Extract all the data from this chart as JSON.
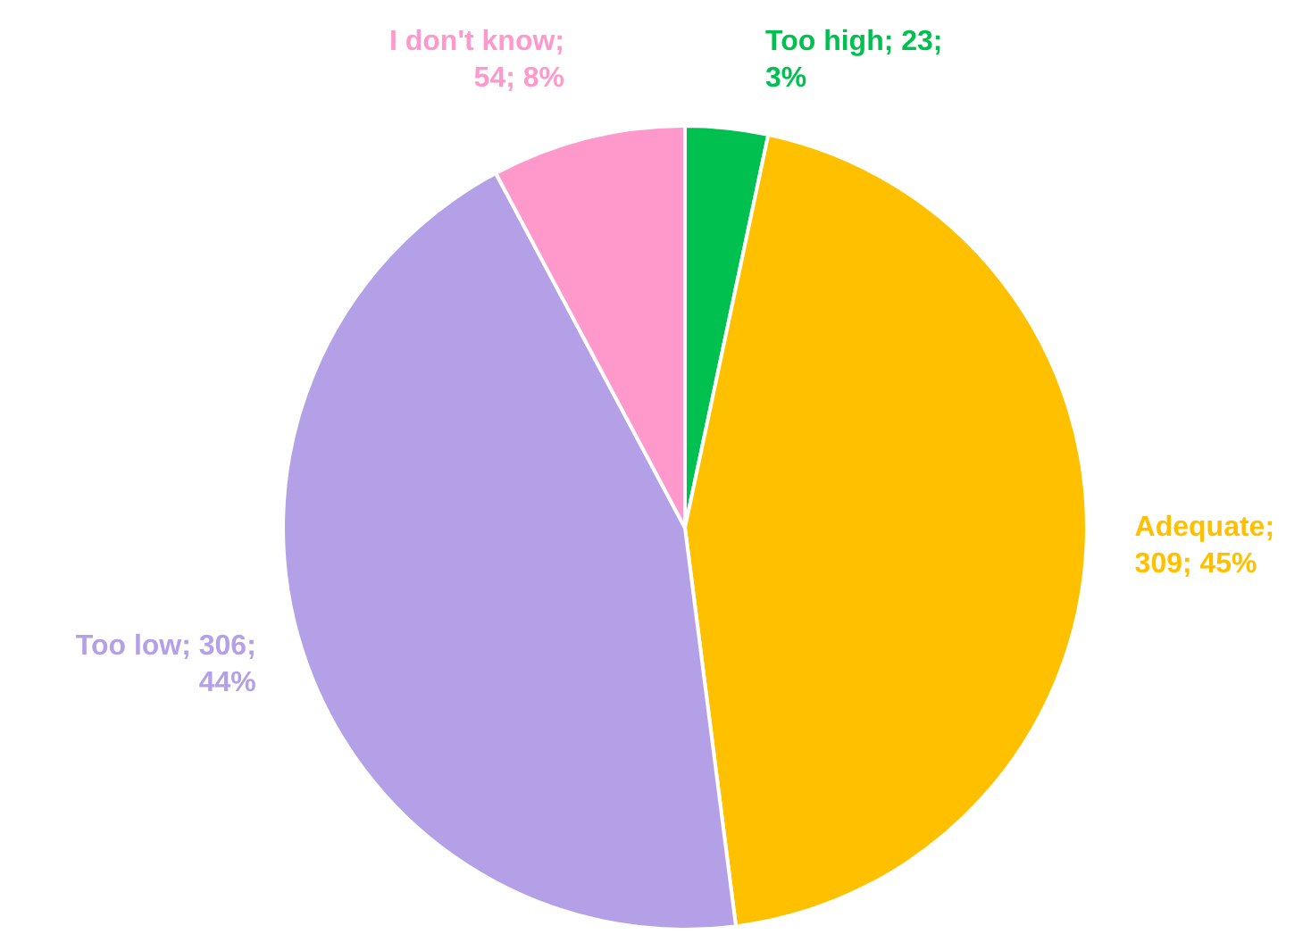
{
  "chart_data": {
    "type": "pie",
    "categories": [
      "Too high",
      "Adequate",
      "Too low",
      "I don't know"
    ],
    "values": [
      23,
      309,
      306,
      54
    ],
    "colors": [
      "#00c050",
      "#ffc000",
      "#b4a0e6",
      "#ff99cc"
    ],
    "value_labels": [
      "; 23; 3%",
      "; 309; 45%",
      "; 306; 44%",
      "; 54; 8%"
    ]
  }
}
